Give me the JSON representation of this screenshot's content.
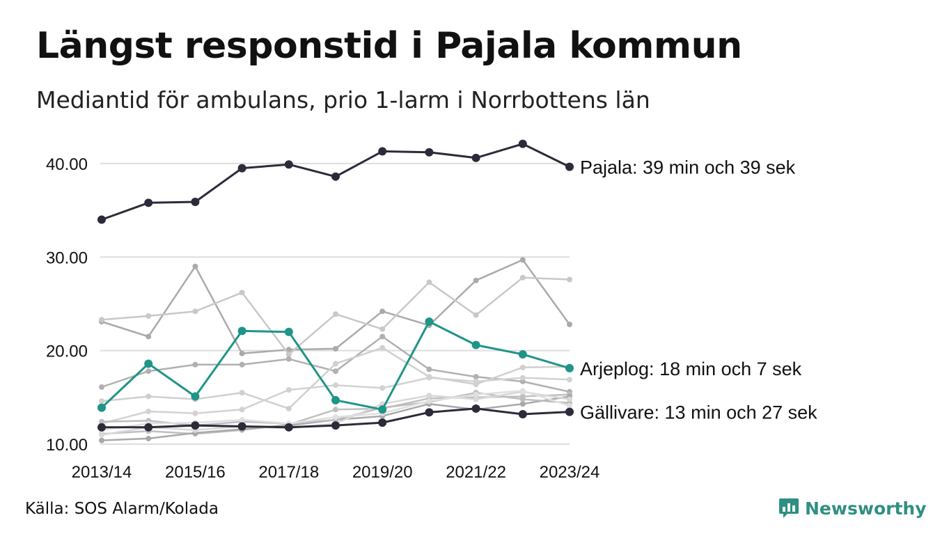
{
  "title": "Längst responstid i Pajala kommun",
  "subtitle": "Mediantid för ambulans, prio 1-larm i Norrbottens län",
  "source": "Källa: SOS Alarm/Kolada",
  "logo_text": "Newsworthy",
  "colors": {
    "highlight_dark": "#2b2b3a",
    "highlight_teal": "#1f9488",
    "grid": "#dddddd",
    "logo": "#2f8f83"
  },
  "chart_data": {
    "type": "line",
    "x": [
      "2013/14",
      "2014/15",
      "2015/16",
      "2016/17",
      "2017/18",
      "2018/19",
      "2019/20",
      "2020/21",
      "2021/22",
      "2022/23",
      "2023/24"
    ],
    "x_tick_labels": [
      "2013/14",
      "2015/16",
      "2017/18",
      "2019/20",
      "2021/22",
      "2023/24"
    ],
    "y_ticks": [
      "10.00",
      "20.00",
      "30.00",
      "40.00"
    ],
    "ylim": [
      10,
      42
    ],
    "grid": "horizontal",
    "background_series": [
      {
        "color": "#aaaaaa",
        "values": [
          23.1,
          21.5,
          29.0,
          19.7,
          20.1,
          20.2,
          24.2,
          22.7,
          27.5,
          29.7,
          22.8
        ]
      },
      {
        "color": "#c8c8c8",
        "values": [
          23.3,
          23.7,
          24.2,
          26.2,
          19.6,
          23.9,
          22.3,
          27.3,
          23.8,
          27.8,
          27.6
        ]
      },
      {
        "color": "#b0b0b0",
        "values": [
          16.1,
          17.8,
          18.5,
          18.5,
          19.1,
          17.8,
          21.5,
          18.0,
          17.2,
          16.7,
          15.6
        ]
      },
      {
        "color": "#cfcfcf",
        "values": [
          14.6,
          15.1,
          14.8,
          15.5,
          13.8,
          18.6,
          20.3,
          17.2,
          16.4,
          18.2,
          18.3
        ]
      },
      {
        "color": "#d2d2d2",
        "values": [
          12.2,
          13.5,
          13.3,
          13.7,
          15.8,
          16.3,
          16.0,
          17.1,
          16.7,
          17.1,
          16.9
        ]
      },
      {
        "color": "#c0c0c0",
        "values": [
          11.1,
          11.4,
          11.1,
          11.5,
          12.1,
          13.7,
          13.8,
          14.9,
          15.0,
          15.1,
          15.3
        ]
      },
      {
        "color": "#a9a9a9",
        "values": [
          10.4,
          10.6,
          11.2,
          11.6,
          12.0,
          12.6,
          13.0,
          14.3,
          13.7,
          14.3,
          15.1
        ]
      },
      {
        "color": "#bdbdbd",
        "values": [
          12.4,
          12.5,
          12.0,
          12.4,
          12.2,
          12.6,
          13.9,
          14.5,
          15.5,
          14.8,
          14.4
        ]
      },
      {
        "color": "#d8d8d8",
        "values": [
          11.0,
          11.8,
          11.5,
          11.9,
          11.7,
          12.2,
          14.3,
          15.2,
          14.8,
          15.6,
          14.8
        ]
      },
      {
        "color": "#e0e0e0",
        "values": [
          11.5,
          12.2,
          12.3,
          12.6,
          12.2,
          12.9,
          13.3,
          14.6,
          15.3,
          15.7,
          14.1
        ]
      }
    ],
    "series": [
      {
        "name": "Pajala",
        "label": "Pajala: 39 min och 39 sek",
        "color": "#2b2b3a",
        "values": [
          34.0,
          35.8,
          35.9,
          39.5,
          39.9,
          38.6,
          41.3,
          41.2,
          40.6,
          42.1,
          39.65
        ]
      },
      {
        "name": "Arjeplog",
        "label": "Arjeplog: 18 min och 7 sek",
        "color": "#1f9488",
        "values": [
          13.9,
          18.6,
          15.1,
          22.1,
          22.0,
          14.7,
          13.7,
          23.1,
          20.6,
          19.6,
          18.12
        ]
      },
      {
        "name": "Gällivare",
        "label": "Gällivare: 13 min och 27 sek",
        "color": "#2b2b3a",
        "values": [
          11.8,
          11.8,
          12.0,
          11.9,
          11.8,
          12.0,
          12.3,
          13.4,
          13.8,
          13.2,
          13.45
        ]
      }
    ]
  }
}
